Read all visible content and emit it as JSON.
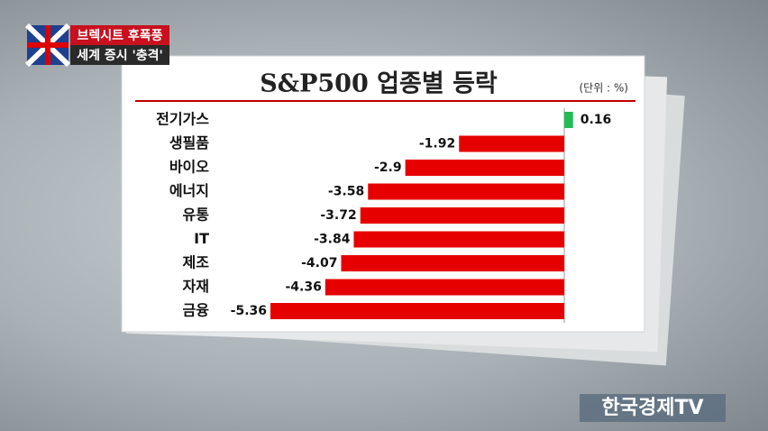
{
  "caption": {
    "headline": "브렉시트 후폭풍",
    "subline": "세계 증시 '충격'"
  },
  "logo": "한국경제TV",
  "chart_data": {
    "type": "bar",
    "orientation": "horizontal",
    "title": "S&P500 업종별 등락",
    "unit": "(단위 : %)",
    "categories": [
      "전기가스",
      "생필품",
      "바이오",
      "에너지",
      "유통",
      "IT",
      "제조",
      "자재",
      "금융"
    ],
    "values": [
      0.16,
      -1.92,
      -2.9,
      -3.58,
      -3.72,
      -3.84,
      -4.07,
      -4.36,
      -5.36
    ],
    "colors": [
      "#22bb55",
      "#e60000",
      "#e60000",
      "#e60000",
      "#e60000",
      "#e60000",
      "#e60000",
      "#e60000",
      "#e60000"
    ]
  }
}
